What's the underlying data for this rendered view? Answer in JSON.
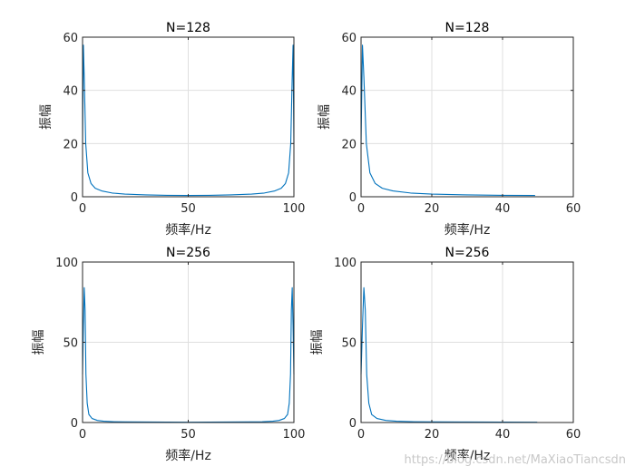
{
  "watermark": "https://blog.csdn.net/MaXiaoTiancsdn",
  "chart_data": [
    {
      "type": "line",
      "title": "N=128",
      "xlabel": "频率/Hz",
      "ylabel": "振幅",
      "xlim": [
        0,
        100
      ],
      "ylim": [
        0,
        60
      ],
      "xticks": [
        0,
        50,
        100
      ],
      "yticks": [
        0,
        20,
        40,
        60
      ],
      "grid": true,
      "color": "#0072BD",
      "series": [
        {
          "x": [
            0,
            0.4,
            0.8,
            1.5,
            2.5,
            4,
            6,
            9,
            14,
            20,
            30,
            40,
            50,
            60,
            70,
            80,
            86,
            91,
            94,
            96,
            97.5,
            98.5,
            99.2,
            99.6,
            100
          ],
          "y": [
            20,
            57,
            45,
            20,
            9,
            5,
            3.2,
            2.2,
            1.4,
            1.0,
            0.7,
            0.55,
            0.5,
            0.55,
            0.7,
            1.0,
            1.4,
            2.2,
            3.2,
            5,
            9,
            20,
            45,
            57,
            20
          ]
        }
      ]
    },
    {
      "type": "line",
      "title": "N=128",
      "xlabel": "频率/Hz",
      "ylabel": "振幅",
      "xlim": [
        0,
        60
      ],
      "ylim": [
        0,
        60
      ],
      "xticks": [
        0,
        20,
        40,
        60
      ],
      "yticks": [
        0,
        20,
        40,
        60
      ],
      "grid": true,
      "color": "#0072BD",
      "series": [
        {
          "x": [
            0,
            0.4,
            0.8,
            1.5,
            2.5,
            4,
            6,
            9,
            14,
            20,
            30,
            40,
            49.2
          ],
          "y": [
            20,
            57,
            45,
            20,
            9,
            5,
            3.2,
            2.2,
            1.4,
            1.0,
            0.7,
            0.55,
            0.5
          ]
        }
      ]
    },
    {
      "type": "line",
      "title": "N=256",
      "xlabel": "频率/Hz",
      "ylabel": "振幅",
      "xlim": [
        0,
        100
      ],
      "ylim": [
        0,
        100
      ],
      "xticks": [
        0,
        50,
        100
      ],
      "yticks": [
        0,
        50,
        100
      ],
      "grid": true,
      "color": "#0072BD",
      "series": [
        {
          "x": [
            0,
            0.4,
            0.8,
            1.2,
            1.6,
            2.2,
            3,
            4.5,
            7,
            10,
            15,
            20,
            30,
            50,
            70,
            80,
            85,
            90,
            93,
            95.5,
            97,
            97.8,
            98.4,
            98.8,
            99.2,
            99.6,
            100
          ],
          "y": [
            30,
            60,
            84,
            70,
            30,
            12,
            5,
            2.5,
            1.3,
            0.8,
            0.5,
            0.4,
            0.3,
            0.2,
            0.3,
            0.4,
            0.5,
            0.8,
            1.3,
            2.5,
            5,
            12,
            30,
            70,
            84,
            60,
            30
          ]
        }
      ]
    },
    {
      "type": "line",
      "title": "N=256",
      "xlabel": "频率/Hz",
      "ylabel": "振幅",
      "xlim": [
        0,
        60
      ],
      "ylim": [
        0,
        100
      ],
      "xticks": [
        0,
        20,
        40,
        60
      ],
      "yticks": [
        0,
        50,
        100
      ],
      "grid": true,
      "color": "#0072BD",
      "series": [
        {
          "x": [
            0,
            0.4,
            0.8,
            1.2,
            1.6,
            2.2,
            3,
            4.5,
            7,
            10,
            15,
            20,
            30,
            40,
            49.8
          ],
          "y": [
            30,
            60,
            84,
            70,
            30,
            12,
            5,
            2.5,
            1.3,
            0.8,
            0.5,
            0.4,
            0.3,
            0.25,
            0.2
          ]
        }
      ]
    }
  ]
}
